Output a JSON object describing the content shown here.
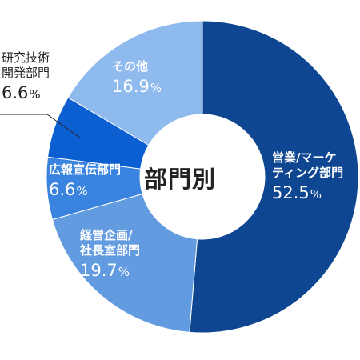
{
  "chart_data": {
    "type": "pie",
    "title": "部門別",
    "start_angle_deg": 0,
    "direction": "clockwise",
    "slices": [
      {
        "label_lines": [
          "営業/マーケ",
          "ティング部門"
        ],
        "value": 52.5,
        "pct_text": "52.5",
        "color": "#0f4691"
      },
      {
        "label_lines": [
          "経営企画/",
          "社長室部門"
        ],
        "value": 19.7,
        "pct_text": "19.7",
        "color": "#629be0"
      },
      {
        "label_lines": [
          "広報宣伝部門"
        ],
        "value": 6.6,
        "pct_text": "6.6",
        "color": "#3a84df"
      },
      {
        "label_lines": [
          "研究技術",
          "開発部門"
        ],
        "value": 6.6,
        "pct_text": "6.6",
        "color": "#0c5fd0"
      },
      {
        "label_lines": [
          "その他"
        ],
        "value": 16.9,
        "pct_text": "16.9",
        "color": "#8fbaee"
      }
    ],
    "unit": "%"
  }
}
